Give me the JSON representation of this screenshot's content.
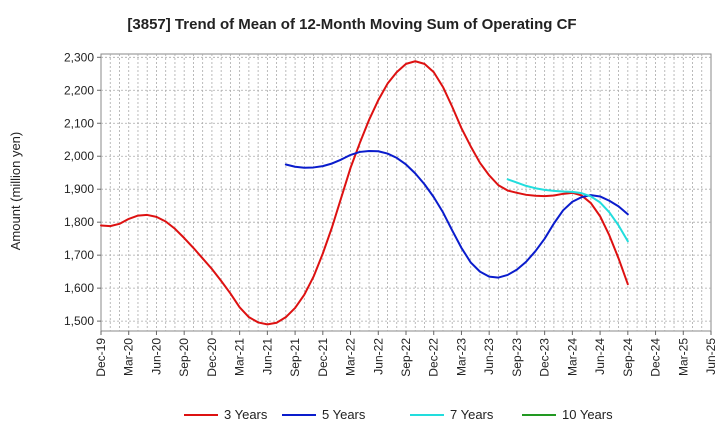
{
  "chart_data": {
    "type": "line",
    "title": "[3857]  Trend of Mean of 12-Month Moving Sum of Operating CF",
    "xlabel": "",
    "ylabel": "Amount (million yen)",
    "ylim": [
      1470,
      2310
    ],
    "yticks": [
      1500,
      1600,
      1700,
      1800,
      1900,
      2000,
      2100,
      2200,
      2300
    ],
    "ytick_labels": [
      "1,500",
      "1,600",
      "1,700",
      "1,800",
      "1,900",
      "2,000",
      "2,100",
      "2,200",
      "2,300"
    ],
    "x_range": [
      0,
      66
    ],
    "x_ticks": [
      0,
      3,
      6,
      9,
      12,
      15,
      18,
      21,
      24,
      27,
      30,
      33,
      36,
      39,
      42,
      45,
      48,
      51,
      54,
      57,
      60,
      63,
      66
    ],
    "x_tick_labels": [
      "Dec-19",
      "Mar-20",
      "Jun-20",
      "Sep-20",
      "Dec-20",
      "Mar-21",
      "Jun-21",
      "Sep-21",
      "Dec-21",
      "Mar-22",
      "Jun-22",
      "Sep-22",
      "Dec-22",
      "Mar-23",
      "Jun-23",
      "Sep-23",
      "Dec-23",
      "Mar-24",
      "Jun-24",
      "Sep-24",
      "Dec-24",
      "Mar-25",
      "Jun-25"
    ],
    "grid": true,
    "legend_position": "bottom",
    "series": [
      {
        "name": "3 Years",
        "color": "#dd1111",
        "x": [
          0,
          1,
          2,
          3,
          4,
          5,
          6,
          7,
          8,
          9,
          10,
          11,
          12,
          13,
          14,
          15,
          16,
          17,
          18,
          19,
          20,
          21,
          22,
          23,
          24,
          25,
          26,
          27,
          28,
          29,
          30,
          31,
          32,
          33,
          34,
          35,
          36,
          37,
          38,
          39,
          40,
          41,
          42,
          43,
          44,
          45,
          46,
          47,
          48,
          49,
          50,
          51,
          52,
          53,
          54,
          55,
          56,
          57
        ],
        "values": [
          1790,
          1788,
          1795,
          1810,
          1820,
          1822,
          1816,
          1802,
          1780,
          1752,
          1722,
          1690,
          1658,
          1622,
          1584,
          1542,
          1512,
          1496,
          1490,
          1495,
          1512,
          1540,
          1580,
          1635,
          1705,
          1785,
          1875,
          1965,
          2040,
          2110,
          2170,
          2220,
          2255,
          2280,
          2288,
          2280,
          2255,
          2210,
          2150,
          2085,
          2030,
          1980,
          1942,
          1912,
          1896,
          1889,
          1883,
          1880,
          1879,
          1881,
          1886,
          1889,
          1881,
          1858,
          1818,
          1760,
          1690,
          1612
        ]
      },
      {
        "name": "5 Years",
        "color": "#0a1ccc",
        "x": [
          20,
          21,
          22,
          23,
          24,
          25,
          26,
          27,
          28,
          29,
          30,
          31,
          32,
          33,
          34,
          35,
          36,
          37,
          38,
          39,
          40,
          41,
          42,
          43,
          44,
          45,
          46,
          47,
          48,
          49,
          50,
          51,
          52,
          53,
          54,
          55,
          56,
          57
        ],
        "values": [
          1975,
          1968,
          1965,
          1966,
          1970,
          1978,
          1990,
          2004,
          2013,
          2016,
          2015,
          2008,
          1995,
          1975,
          1948,
          1915,
          1876,
          1830,
          1775,
          1722,
          1678,
          1650,
          1635,
          1632,
          1640,
          1656,
          1680,
          1712,
          1750,
          1796,
          1836,
          1862,
          1876,
          1882,
          1878,
          1865,
          1848,
          1824
        ]
      },
      {
        "name": "7 Years",
        "color": "#22dddd",
        "x": [
          44,
          45,
          46,
          47,
          48,
          49,
          50,
          51,
          52,
          53,
          54,
          55,
          56,
          57
        ],
        "values": [
          1930,
          1920,
          1910,
          1903,
          1898,
          1895,
          1893,
          1892,
          1888,
          1878,
          1860,
          1830,
          1790,
          1742
        ]
      },
      {
        "name": "10 Years",
        "color": "#229922",
        "x": [],
        "values": []
      }
    ]
  }
}
